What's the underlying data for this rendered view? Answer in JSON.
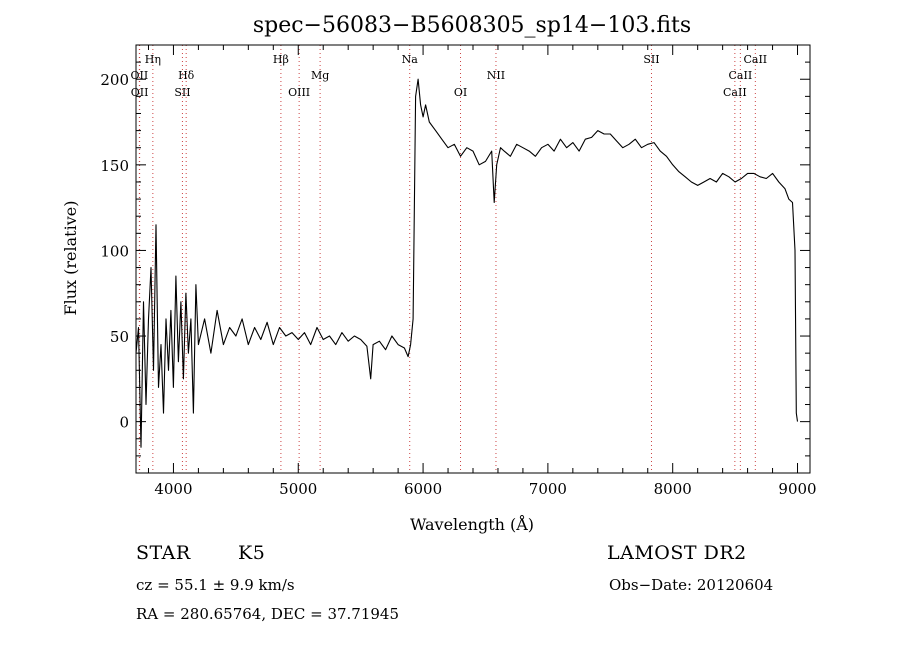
{
  "chart_data": {
    "type": "line",
    "title": "spec−56083−B5608305_sp14−103.fits",
    "xlabel": "Wavelength (Å)",
    "ylabel": "Flux (relative)",
    "xlim": [
      3700,
      9100
    ],
    "ylim": [
      -30,
      220
    ],
    "xticks": [
      4000,
      5000,
      6000,
      7000,
      8000,
      9000
    ],
    "yticks": [
      0,
      50,
      100,
      150,
      200
    ],
    "xtick_labels": [
      "4000",
      "5000",
      "6000",
      "7000",
      "8000",
      "9000"
    ],
    "ytick_labels": [
      "0",
      "50",
      "100",
      "150",
      "200"
    ],
    "grid": false,
    "series": [
      {
        "x": [
          3700,
          3720,
          3740,
          3760,
          3780,
          3800,
          3820,
          3840,
          3860,
          3880,
          3900,
          3920,
          3940,
          3960,
          3980,
          4000,
          4020,
          4040,
          4060,
          4080,
          4100,
          4120,
          4140,
          4160,
          4180,
          4200,
          4250,
          4300,
          4350,
          4400,
          4450,
          4500,
          4550,
          4600,
          4650,
          4700,
          4750,
          4800,
          4850,
          4900,
          4950,
          5000,
          5050,
          5100,
          5150,
          5200,
          5250,
          5300,
          5350,
          5400,
          5450,
          5500,
          5550,
          5580,
          5600,
          5650,
          5700,
          5750,
          5800,
          5850,
          5880,
          5900,
          5920,
          5940,
          5960,
          5980,
          6000,
          6020,
          6050,
          6100,
          6150,
          6200,
          6250,
          6300,
          6350,
          6400,
          6450,
          6500,
          6550,
          6570,
          6590,
          6620,
          6650,
          6700,
          6750,
          6800,
          6850,
          6900,
          6950,
          7000,
          7050,
          7100,
          7150,
          7200,
          7250,
          7300,
          7350,
          7400,
          7450,
          7500,
          7550,
          7600,
          7650,
          7700,
          7750,
          7800,
          7850,
          7900,
          7950,
          8000,
          8050,
          8100,
          8150,
          8200,
          8250,
          8300,
          8350,
          8400,
          8450,
          8500,
          8550,
          8600,
          8650,
          8700,
          8750,
          8800,
          8850,
          8900,
          8930,
          8960,
          8980,
          8990,
          9000
        ],
        "y": [
          40,
          55,
          -15,
          70,
          10,
          60,
          90,
          30,
          115,
          20,
          45,
          5,
          60,
          30,
          65,
          20,
          85,
          35,
          70,
          25,
          75,
          40,
          60,
          5,
          80,
          45,
          60,
          40,
          65,
          45,
          55,
          50,
          60,
          45,
          55,
          48,
          58,
          45,
          55,
          50,
          52,
          48,
          52,
          45,
          55,
          48,
          50,
          45,
          52,
          47,
          50,
          48,
          44,
          25,
          45,
          47,
          42,
          50,
          45,
          43,
          38,
          45,
          60,
          190,
          200,
          185,
          178,
          185,
          175,
          170,
          165,
          160,
          162,
          155,
          160,
          158,
          150,
          152,
          158,
          128,
          150,
          160,
          158,
          155,
          162,
          160,
          158,
          155,
          160,
          162,
          158,
          165,
          160,
          163,
          158,
          165,
          166,
          170,
          168,
          168,
          164,
          160,
          162,
          165,
          160,
          162,
          163,
          158,
          155,
          150,
          146,
          143,
          140,
          138,
          140,
          142,
          140,
          145,
          143,
          140,
          142,
          145,
          145,
          143,
          142,
          145,
          140,
          136,
          130,
          128,
          100,
          5,
          0
        ]
      }
    ],
    "annotations": [
      {
        "label": "Hη",
        "x": 3835,
        "row": 1
      },
      {
        "label": "OII",
        "x": 3727,
        "row": 2
      },
      {
        "label": "Hδ",
        "x": 4102,
        "row": 2
      },
      {
        "label": "OII",
        "x": 3729,
        "row": 3
      },
      {
        "label": "SII",
        "x": 4072,
        "row": 3
      },
      {
        "label": "Hβ",
        "x": 4861,
        "row": 1
      },
      {
        "label": "Mg",
        "x": 5175,
        "row": 2
      },
      {
        "label": "OIII",
        "x": 5007,
        "row": 3
      },
      {
        "label": "Na",
        "x": 5893,
        "row": 1
      },
      {
        "label": "NII",
        "x": 6584,
        "row": 2
      },
      {
        "label": "OI",
        "x": 6300,
        "row": 3
      },
      {
        "label": "SII",
        "x": 7830,
        "row": 1
      },
      {
        "label": "CaII",
        "x": 8662,
        "row": 1
      },
      {
        "label": "CaII",
        "x": 8542,
        "row": 2
      },
      {
        "label": "CaII",
        "x": 8498,
        "row": 3
      }
    ]
  },
  "info": {
    "object_class": "STAR",
    "subclass": "K5",
    "survey": "LAMOST DR2",
    "redshift": "cz = 55.1 ± 9.9 km/s",
    "obs_date": "Obs−Date: 20120604",
    "coords": "RA = 280.65764, DEC =  37.71945"
  },
  "colors": {
    "line": "#000000",
    "marker_lines": "#cc4444",
    "background": "#ffffff"
  }
}
